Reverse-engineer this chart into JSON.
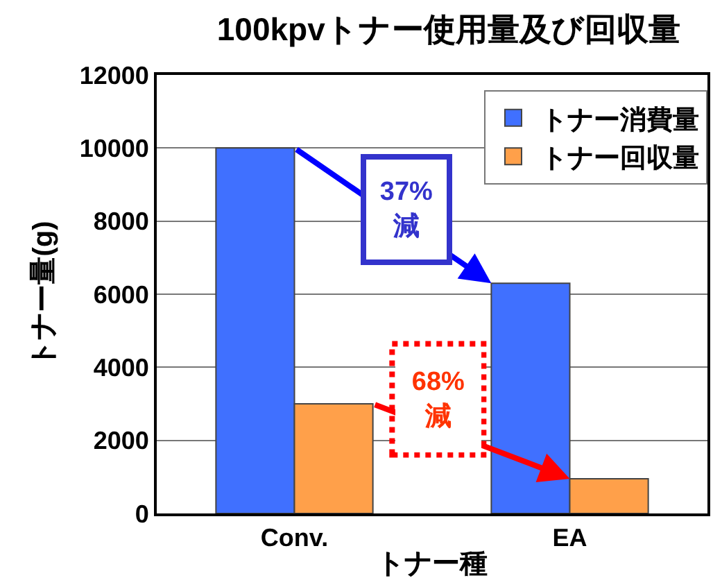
{
  "chart_data": {
    "type": "bar",
    "title": "100kpvトナー使用量及び回収量",
    "xlabel": "トナー種",
    "ylabel": "トナー量(g)",
    "categories": [
      "Conv.",
      "EA"
    ],
    "series": [
      {
        "name": "トナー消費量",
        "color": "#4070ff",
        "values": [
          10000,
          6300
        ]
      },
      {
        "name": "トナー回収量",
        "color": "#ffa04a",
        "values": [
          3000,
          950
        ]
      }
    ],
    "ylim": [
      0,
      12000
    ],
    "yticks": [
      0,
      2000,
      4000,
      6000,
      8000,
      10000,
      12000
    ],
    "grid": "y",
    "legend": "top right",
    "annotations": [
      "37%\n減",
      "68%\n減"
    ]
  }
}
